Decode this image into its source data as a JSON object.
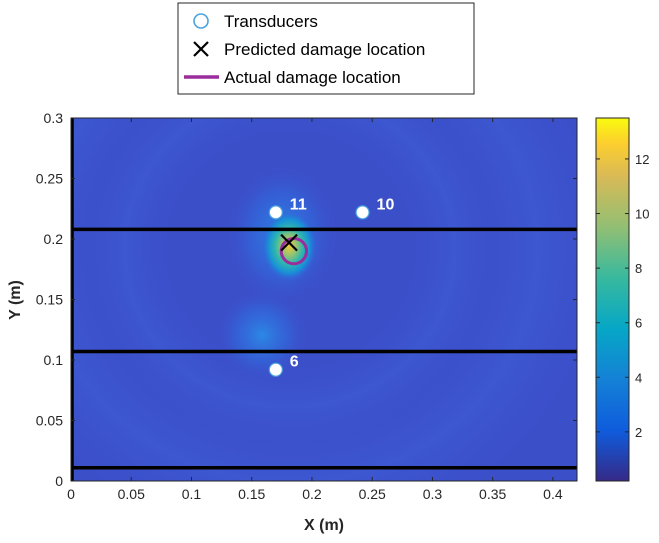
{
  "chart_data": {
    "type": "heatmap",
    "xlabel": "X (m)",
    "ylabel": "Y (m)",
    "xlim": [
      0,
      0.42
    ],
    "ylim": [
      0,
      0.3
    ],
    "xticks": [
      "0",
      "0.05",
      "0.1",
      "0.15",
      "0.2",
      "0.25",
      "0.3",
      "0.35",
      "0.4"
    ],
    "yticks": [
      "0",
      "0.05",
      "0.1",
      "0.15",
      "0.2",
      "0.25",
      "0.3"
    ],
    "colorbar": {
      "range": [
        0.2,
        13.5
      ],
      "ticks": [
        "2",
        "4",
        "6",
        "8",
        "10",
        "12"
      ],
      "colormap": "parula"
    },
    "legend": {
      "placement": "top-center",
      "entries": [
        {
          "label": "Transducers",
          "marker": "circle",
          "color": "#4aa3df"
        },
        {
          "label": "Predicted damage location",
          "marker": "x",
          "color": "#000000"
        },
        {
          "label": "Actual damage location",
          "marker": "line",
          "color": "#9b2c9b"
        }
      ]
    },
    "transducers": [
      {
        "label": "11",
        "x": 0.17,
        "y": 0.222
      },
      {
        "label": "10",
        "x": 0.242,
        "y": 0.222
      },
      {
        "label": "6",
        "x": 0.17,
        "y": 0.092
      }
    ],
    "predicted_damage": {
      "x": 0.181,
      "y": 0.197
    },
    "actual_damage": {
      "x": 0.185,
      "y": 0.19,
      "radius": 0.0105
    },
    "horizontal_lines_y": [
      0.208,
      0.107,
      0.011
    ]
  }
}
